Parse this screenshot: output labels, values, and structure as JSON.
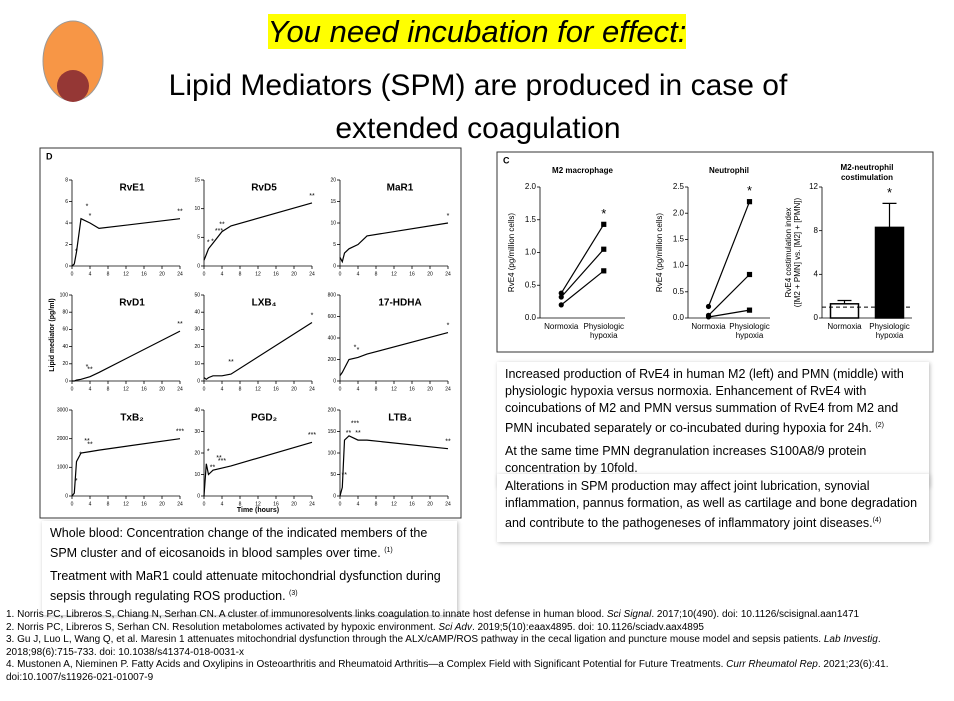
{
  "header": {
    "highlight": "You need incubation for effect:",
    "title": "Lipid Mediators (SPM) are produced in case of extended coagulation"
  },
  "figure_d": {
    "label": "D",
    "y_label": "Lipid mediator (pg/ml)",
    "x_label": "Time (hours)"
  },
  "figure_c": {
    "label": "C"
  },
  "chart_data": [
    {
      "type": "line",
      "title": "RvE1",
      "x": [
        0,
        0.5,
        1,
        2,
        4,
        6,
        24
      ],
      "values": [
        0,
        0.2,
        1.3,
        4.4,
        4.0,
        3.5,
        4.4
      ],
      "annotations": [
        null,
        "*",
        null,
        "*",
        "*",
        null,
        "**"
      ],
      "xlim": [
        0,
        24
      ],
      "xticks": [
        0,
        4,
        8,
        12,
        16,
        20,
        24
      ],
      "ylim": [
        0,
        8
      ],
      "yticks": [
        0,
        2,
        4,
        6,
        8
      ]
    },
    {
      "type": "line",
      "title": "RvD5",
      "x": [
        0,
        0.5,
        1,
        2,
        4,
        6,
        24
      ],
      "values": [
        1,
        2,
        3,
        4,
        6,
        7,
        11
      ],
      "annotations": [
        null,
        "*",
        "*",
        "***",
        "**",
        null,
        "**"
      ],
      "xlim": [
        0,
        24
      ],
      "xticks": [
        0,
        4,
        8,
        12,
        16,
        20,
        24
      ],
      "ylim": [
        0,
        15
      ],
      "yticks": [
        0,
        5,
        10,
        15
      ]
    },
    {
      "type": "line",
      "title": "MaR1",
      "x": [
        0,
        0.5,
        1,
        2,
        4,
        6,
        24
      ],
      "values": [
        2,
        1,
        3,
        4,
        5,
        7,
        10
      ],
      "annotations": [
        null,
        null,
        null,
        null,
        null,
        null,
        "*"
      ],
      "xlim": [
        0,
        24
      ],
      "xticks": [
        0,
        4,
        8,
        12,
        16,
        20,
        24
      ],
      "ylim": [
        0,
        20
      ],
      "yticks": [
        0,
        5,
        10,
        15,
        20
      ]
    },
    {
      "type": "line",
      "title": "RvD1",
      "x": [
        0,
        0.5,
        1,
        2,
        4,
        6,
        24
      ],
      "values": [
        0,
        0,
        1,
        2,
        5,
        10,
        58
      ],
      "annotations": [
        null,
        null,
        null,
        "*",
        "**",
        null,
        "**"
      ],
      "xlim": [
        0,
        24
      ],
      "xticks": [
        0,
        4,
        8,
        12,
        16,
        20,
        24
      ],
      "ylim": [
        0,
        100
      ],
      "yticks": [
        0,
        20,
        40,
        60,
        80,
        100
      ]
    },
    {
      "type": "line",
      "title": "LXB₄",
      "x": [
        0,
        0.5,
        1,
        2,
        4,
        6,
        24
      ],
      "values": [
        2,
        1,
        2,
        3,
        3,
        4,
        34
      ],
      "annotations": [
        null,
        null,
        null,
        null,
        null,
        "**",
        "*"
      ],
      "xlim": [
        0,
        24
      ],
      "xticks": [
        0,
        4,
        8,
        12,
        16,
        20,
        24
      ],
      "ylim": [
        0,
        50
      ],
      "yticks": [
        0,
        10,
        20,
        30,
        40,
        50
      ]
    },
    {
      "type": "line",
      "title": "17-HDHA",
      "x": [
        0,
        0.5,
        1,
        2,
        4,
        6,
        24
      ],
      "values": [
        50,
        80,
        120,
        200,
        220,
        250,
        450
      ],
      "annotations": [
        null,
        null,
        null,
        "*",
        "*",
        null,
        "*"
      ],
      "xlim": [
        0,
        24
      ],
      "xticks": [
        0,
        4,
        8,
        12,
        16,
        20,
        24
      ],
      "ylim": [
        0,
        800
      ],
      "yticks": [
        0,
        200,
        400,
        600,
        800
      ]
    },
    {
      "type": "line",
      "title": "TxB₂",
      "x": [
        0,
        0.5,
        1,
        2,
        4,
        6,
        24
      ],
      "values": [
        0,
        100,
        1200,
        1500,
        1550,
        1600,
        2000
      ],
      "annotations": [
        null,
        "*",
        "*",
        "**",
        "**",
        null,
        "***"
      ],
      "xlim": [
        0,
        24
      ],
      "xticks": [
        0,
        4,
        8,
        12,
        16,
        20,
        24
      ],
      "ylim": [
        0,
        3000
      ],
      "yticks": [
        0,
        1000,
        2000,
        3000
      ]
    },
    {
      "type": "line",
      "title": "PGD₂",
      "x": [
        0,
        0.5,
        1,
        2,
        4,
        6,
        24
      ],
      "values": [
        0,
        15,
        10,
        12,
        13,
        14,
        25
      ],
      "annotations": [
        null,
        "*",
        "**",
        "**",
        "***",
        null,
        "***"
      ],
      "xlim": [
        0,
        24
      ],
      "xticks": [
        0,
        4,
        8,
        12,
        16,
        20,
        24
      ],
      "ylim": [
        0,
        40
      ],
      "yticks": [
        0,
        10,
        20,
        30,
        40
      ]
    },
    {
      "type": "line",
      "title": "LTB₄",
      "x": [
        0,
        0.5,
        1,
        2,
        4,
        6,
        24
      ],
      "values": [
        0,
        20,
        130,
        140,
        130,
        130,
        110
      ],
      "annotations": [
        null,
        "**",
        "**",
        "***",
        "**",
        null,
        "**"
      ],
      "xlim": [
        0,
        24
      ],
      "xticks": [
        0,
        4,
        8,
        12,
        16,
        20,
        24
      ],
      "ylim": [
        0,
        200
      ],
      "yticks": [
        0,
        50,
        100,
        150,
        200
      ]
    },
    {
      "type": "paired",
      "title": "M2 macrophage",
      "ylabel": "RvE4 (pg/million cells)",
      "categories": [
        "Normoxia",
        "Physiologic hypoxia"
      ],
      "series": [
        {
          "values": [
            0.38,
            1.43
          ]
        },
        {
          "values": [
            0.32,
            1.05
          ]
        },
        {
          "values": [
            0.2,
            0.72
          ]
        }
      ],
      "color": "#000000",
      "annotations": [
        null,
        "*"
      ],
      "ylim": [
        0,
        2
      ],
      "yticks": [
        {
          "value": 0,
          "label": "0.0"
        },
        {
          "value": 0.5,
          "label": "0.5"
        },
        {
          "value": 1,
          "label": "1.0"
        },
        {
          "value": 1.5,
          "label": "1.5"
        },
        {
          "value": 2,
          "label": "2.0"
        }
      ]
    },
    {
      "type": "paired",
      "title": "Neutrophil",
      "ylabel": "RvE4 (pg/million cells)",
      "categories": [
        "Normoxia",
        "Physiologic hypoxia"
      ],
      "series": [
        {
          "values": [
            0.22,
            2.22
          ]
        },
        {
          "values": [
            0.05,
            0.83
          ]
        },
        {
          "values": [
            0.02,
            0.15
          ]
        }
      ],
      "color": "#000000",
      "annotations": [
        null,
        "*"
      ],
      "ylim": [
        0,
        2.5
      ],
      "yticks": [
        {
          "value": 0,
          "label": "0.0"
        },
        {
          "value": 0.5,
          "label": "0.5"
        },
        {
          "value": 1,
          "label": "1.0"
        },
        {
          "value": 1.5,
          "label": "1.5"
        },
        {
          "value": 2,
          "label": "2.0"
        },
        {
          "value": 2.5,
          "label": "2.5"
        }
      ]
    },
    {
      "type": "bar",
      "title": [
        "M2-neutrophil",
        "costimulation"
      ],
      "ylabel": [
        "RvE4 costimulation index",
        "([M2 + PMN] vs. [M2] + [PMN])"
      ],
      "categories": [
        "Normoxia",
        "Physiologic hypoxia"
      ],
      "values": [
        1.3,
        8.3
      ],
      "errors": [
        0.3,
        2.2
      ],
      "colors": [
        "#ffffff",
        "#000000"
      ],
      "reference": 1,
      "annotations": [
        null,
        "*"
      ],
      "ylim": [
        0,
        12
      ],
      "yticks": [
        0,
        4,
        8,
        12
      ]
    }
  ],
  "notes": {
    "left": [
      {
        "text": "Whole blood: Concentration change of the indicated members of the SPM cluster and of eicosanoids in blood samples over time. ",
        "ref": "(1)"
      },
      {
        "text": "Treatment with MaR1 could attenuate mitochondrial dysfunction during sepsis through regulating ROS production. ",
        "ref": "(3)"
      }
    ],
    "right": [
      {
        "text": "Increased production of RvE4 in human M2 (left) and PMN (middle) with physiologic hypoxia versus normoxia. Enhancement of RvE4 with coincubations of M2 and PMN versus summation of RvE4 from M2 and PMN incubated separately or co-incubated during hypoxia for 24h. ",
        "ref": "(2)"
      },
      {
        "text": "At the same time PMN degranulation increases S100A8/9 protein concentration by 10fold."
      }
    ],
    "right2": [
      {
        "text": "Alterations in SPM production may affect joint lubrication, synovial inflammation, pannus formation, as well as cartilage and bone degradation and contribute to the pathogeneses of inflammatory joint diseases.",
        "ref": "(4)"
      }
    ]
  },
  "references": [
    {
      "text": "1. Norris PC, Libreros S, Chiang N, Serhan CN. A cluster of immunoresolvents links coagulation to innate host defense in human blood. ",
      "journal": "Sci Signal",
      "rest": ". 2017;10(490). doi: 10.1126/scisignal.aan1471"
    },
    {
      "text": "2. Norris PC, Libreros S, Serhan CN. Resolution metabolomes activated by hypoxic environment. ",
      "journal": "Sci Adv",
      "rest": ". 2019;5(10):eaax4895. doi: 10.1126/sciadv.aax4895"
    },
    {
      "text": "3. Gu J, Luo L, Wang Q, et al. Maresin 1 attenuates mitochondrial dysfunction through the ALX/cAMP/ROS pathway in the cecal ligation and puncture mouse model and sepsis patients. ",
      "journal": "Lab Investig",
      "rest": ". 2018;98(6):715-733. doi: 10.1038/s41374-018-0031-x"
    },
    {
      "text": "4. Mustonen A, Nieminen P. Fatty Acids and Oxylipins in Osteoarthritis and Rheumatoid Arthritis—a Complex Field with Significant Potential for Future Treatments. ",
      "journal": "Curr Rheumatol Rep",
      "rest": ". 2021;23(6):41. doi:10.1007/s11926-021-01007-9"
    }
  ]
}
